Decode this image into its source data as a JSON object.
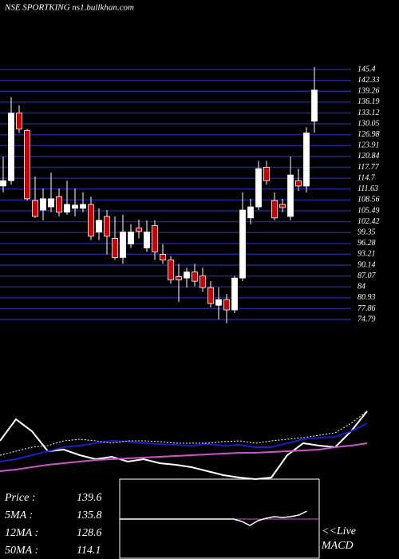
{
  "chart_data": [
    {
      "type": "candlestick",
      "title": "NSE SPORTKING ns1.bullkhan.com",
      "up_color": "#ffffff",
      "down_color": "#cc0000",
      "grid_color": "#23238f",
      "grid": true,
      "ylim": [
        73,
        147
      ],
      "yticks": [
        145.4,
        142.33,
        139.26,
        136.19,
        133.12,
        130.05,
        126.98,
        123.91,
        120.84,
        117.77,
        114.7,
        111.63,
        108.56,
        105.49,
        102.42,
        99.35,
        96.28,
        93.21,
        90.14,
        87.07,
        84,
        80.93,
        77.86,
        74.79
      ],
      "open": [
        112.5,
        114.0,
        133.1,
        128.2,
        108.4,
        105.7,
        106.6,
        109.5,
        105.1,
        106.2,
        106.2,
        107.3,
        99.5,
        103.9,
        97.7,
        92.3,
        96.1,
        100.6,
        95.0,
        101.3,
        93.2,
        91.6,
        86.9,
        86.5,
        88.2,
        87.1,
        83.8,
        78.8,
        80.4,
        77.5,
        86.5,
        103.5,
        106.6,
        117.8,
        108.4,
        107.3,
        103.9,
        114.0,
        112.5,
        130.8
      ],
      "high": [
        120.8,
        137.6,
        135.3,
        128.6,
        115.2,
        111.8,
        116.3,
        111.8,
        114.0,
        111.8,
        110.7,
        109.5,
        106.2,
        105.7,
        103.9,
        104.4,
        101.7,
        103.0,
        102.8,
        102.8,
        96.1,
        92.7,
        90.5,
        89.4,
        90.5,
        89.4,
        85.6,
        83.8,
        82.0,
        87.1,
        110.7,
        108.9,
        119.6,
        119.6,
        110.7,
        108.9,
        120.8,
        117.4,
        129.1,
        146.1
      ],
      "low": [
        110.7,
        112.9,
        127.5,
        108.4,
        103.5,
        102.8,
        105.1,
        103.9,
        104.4,
        103.9,
        105.1,
        97.2,
        97.2,
        93.2,
        91.6,
        90.5,
        95.0,
        97.7,
        93.9,
        91.6,
        90.5,
        84.9,
        79.7,
        83.8,
        84.2,
        82.6,
        78.2,
        74.8,
        73.7,
        76.6,
        85.6,
        101.7,
        105.7,
        112.9,
        102.8,
        105.1,
        102.8,
        111.1,
        110.7,
        127.5
      ],
      "close": [
        114.0,
        133.1,
        128.6,
        108.9,
        103.9,
        108.9,
        108.9,
        105.1,
        107.3,
        107.1,
        107.3,
        98.3,
        102.8,
        98.3,
        92.3,
        99.5,
        99.5,
        99.7,
        99.5,
        93.9,
        91.6,
        86.0,
        86.0,
        88.2,
        85.6,
        83.8,
        79.3,
        80.4,
        77.5,
        86.5,
        105.7,
        106.6,
        117.4,
        114.0,
        103.5,
        106.4,
        115.6,
        112.5,
        127.5,
        139.6
      ]
    },
    {
      "type": "line",
      "ylim": [
        0,
        100
      ],
      "series": [
        {
          "color": "#ffffff",
          "dashed": false,
          "values": [
            50.5,
            78.9,
            63.2,
            36.8,
            38.9,
            31.6,
            26.3,
            29.5,
            23.2,
            26.3,
            21.1,
            18.9,
            15.8,
            10.5,
            5.3,
            2.1,
            0,
            2.1,
            31.6,
            47.4,
            44.2,
            42.1,
            63.2,
            89.5
          ]
        },
        {
          "color": "#1c1cc8",
          "dashed": false,
          "values": [
            23.2,
            26.3,
            31.6,
            36.8,
            42.1,
            44.2,
            47.4,
            50.5,
            49.5,
            47.4,
            46.3,
            45.3,
            44.2,
            46.3,
            44.2,
            45.3,
            42.1,
            42.1,
            47.4,
            52.6,
            54.7,
            55.8,
            63.2,
            73.7
          ]
        },
        {
          "color": "#cc55cc",
          "dashed": false,
          "values": [
            10.5,
            12.6,
            15.8,
            18.9,
            21.1,
            23.2,
            25.3,
            26.3,
            27.4,
            28.4,
            29.5,
            30.5,
            31.6,
            32.6,
            33.7,
            34.7,
            34.7,
            35.8,
            36.8,
            37.9,
            38.9,
            42.1,
            44.2,
            47.4
          ]
        },
        {
          "color": "#ffffff",
          "dashed": true,
          "values": [
            31.6,
            36.8,
            42.1,
            44.2,
            50.5,
            52.6,
            50.5,
            47.4,
            50.5,
            50.5,
            49.5,
            47.4,
            47.4,
            47.4,
            49.5,
            50.5,
            47.4,
            50.5,
            52.6,
            54.7,
            57.9,
            61.1,
            73.7,
            89.5
          ]
        }
      ]
    },
    {
      "type": "macd",
      "ylim": [
        -10,
        10
      ],
      "signal_color": "#cc55cc",
      "line_color": "#ffffff",
      "values": [
        0,
        0,
        0,
        0,
        0,
        0,
        0,
        0,
        0,
        0,
        0,
        0,
        0,
        0,
        0,
        -0.6,
        -1.6,
        -0.4,
        0.2,
        0.6,
        0.4,
        0.6,
        1.0,
        2.0
      ],
      "info": [
        {
          "label": "Price :",
          "value": 139.6
        },
        {
          "label": "5MA :",
          "value": 135.8
        },
        {
          "label": "12MA :",
          "value": 128.6
        },
        {
          "label": "50MA :",
          "value": 114.1
        }
      ],
      "live_label": "<<Live",
      "macd_label": "MACD"
    }
  ]
}
